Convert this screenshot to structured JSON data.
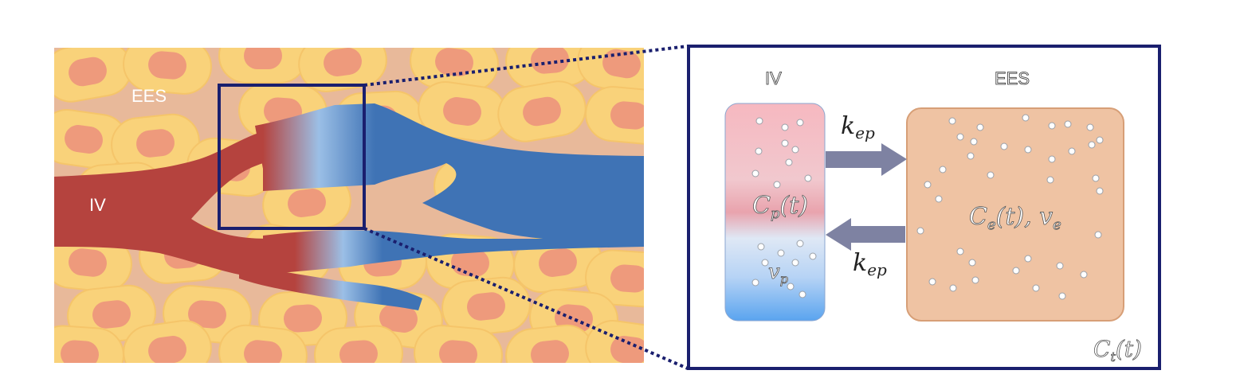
{
  "tissue": {
    "label_ees": "EES",
    "label_iv": "IV"
  },
  "compartments": {
    "iv_title": "IV",
    "ees_title": "EES",
    "iv_conc": "C",
    "iv_conc_sub": "p",
    "iv_conc_arg": "(t)",
    "iv_vol": "v",
    "iv_vol_sub": "p",
    "ees_conc": "C",
    "ees_conc_sub": "e",
    "ees_conc_arg": "(t), ",
    "ees_vol": "v",
    "ees_vol_sub": "e",
    "total_conc": "C",
    "total_conc_sub": "t",
    "total_conc_arg": "(t)"
  },
  "rates": {
    "kin": "k",
    "kin_sub": "ep",
    "kout": "k",
    "kout_sub": "ep"
  },
  "colors": {
    "frame": "#1a1f6e",
    "vessel_red": "#b5433e",
    "vessel_blue": "#3f73b5",
    "tissue_bg": "#e8b99a",
    "cell_body": "#f9d27a",
    "nucleus": "#ee9a7c",
    "arrow": "#7e82a2"
  }
}
